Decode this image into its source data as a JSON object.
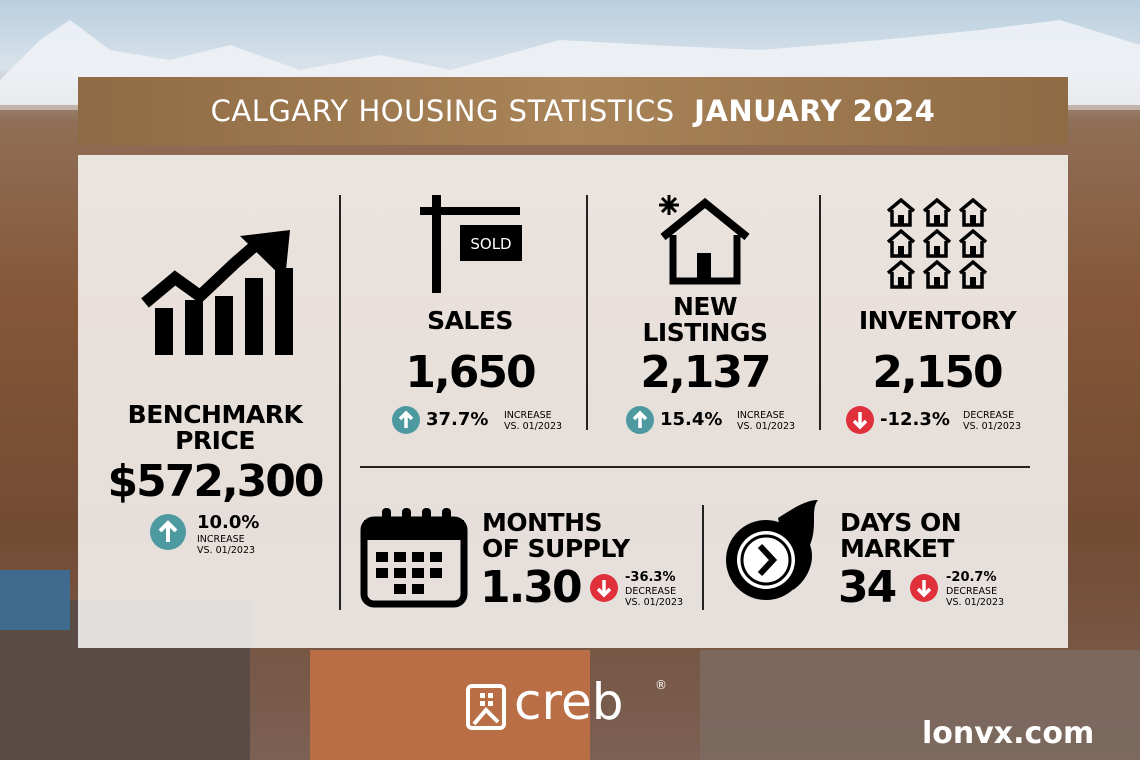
{
  "header": {
    "title": "CALGARY HOUSING STATISTICS",
    "period": "JANUARY 2024"
  },
  "benchmark": {
    "label": [
      "BENCHMARK",
      "PRICE"
    ],
    "value": "$572,300",
    "change": "10.0%",
    "direction": "INCREASE",
    "comparison": "VS. 01/2023"
  },
  "sales": {
    "label": [
      "SALES"
    ],
    "sign": "SOLD",
    "value": "1,650",
    "change": "37.7%",
    "direction": "INCREASE",
    "comparison": "VS. 01/2023"
  },
  "new_listings": {
    "label": [
      "NEW",
      "LISTINGS"
    ],
    "value": "2,137",
    "change": "15.4%",
    "direction": "INCREASE",
    "comparison": "VS. 01/2023"
  },
  "inventory": {
    "label": [
      "INVENTORY"
    ],
    "value": "2,150",
    "change": "-12.3%",
    "direction": "DECREASE",
    "comparison": "VS. 01/2023"
  },
  "months_of_supply": {
    "label": [
      "MONTHS",
      "OF SUPPLY"
    ],
    "value": "1.30",
    "change": "-36.3%",
    "direction": "DECREASE",
    "comparison": "VS. 01/2023"
  },
  "days_on_market": {
    "label": [
      "DAYS ON",
      "MARKET"
    ],
    "value": "34",
    "change": "-20.7%",
    "direction": "DECREASE",
    "comparison": "VS. 01/2023"
  },
  "footer": {
    "brand": "creb",
    "registered": "®",
    "watermark": "lonvx.com"
  }
}
